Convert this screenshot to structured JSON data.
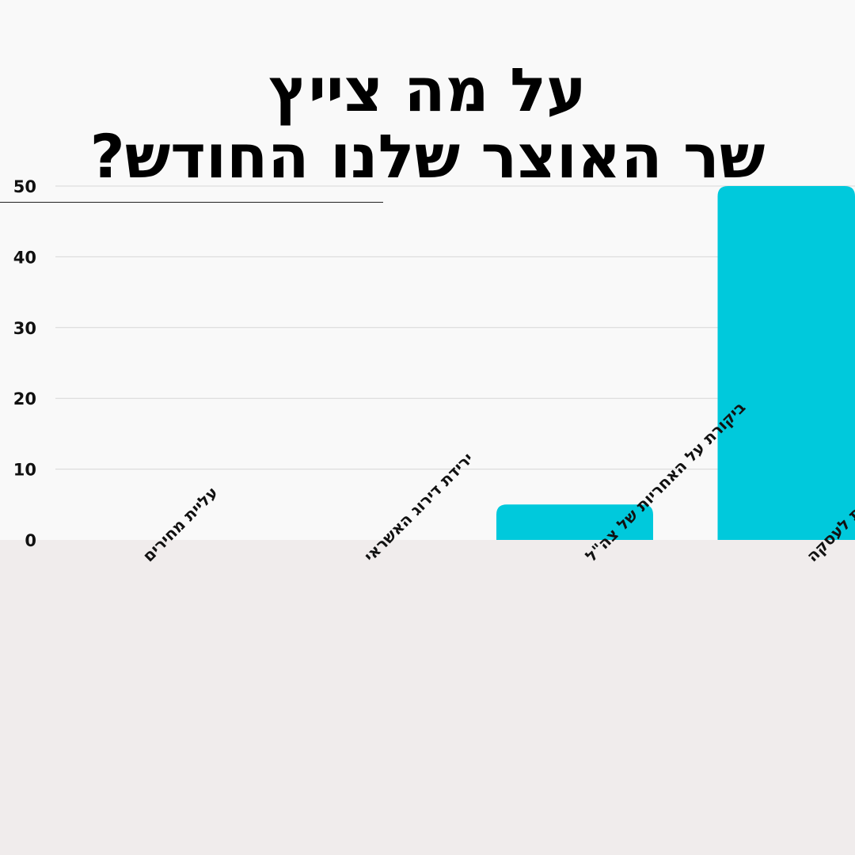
{
  "title": {
    "line1": "על מה צייץ",
    "line2": "שר האוצר שלנו החודש?"
  },
  "colors": {
    "bar": "#00c9dc",
    "background": "#f9f9f9",
    "bottom_band": "#f0ecec",
    "grid": "#d7d7d7"
  },
  "chart_data": {
    "type": "bar",
    "categories": [
      "עליית מחירים",
      "ירידת דירוג האשראי",
      "ביקורת על האחריות של צה\"ל",
      "מענקים, רע\"מ, התנחלויות, התנגדות לעסקה"
    ],
    "values": [
      0,
      0,
      5,
      50
    ],
    "yticks": [
      0,
      10,
      20,
      30,
      40,
      50
    ],
    "ylim": [
      0,
      50
    ],
    "grid": true,
    "xlabel": "",
    "ylabel": ""
  }
}
